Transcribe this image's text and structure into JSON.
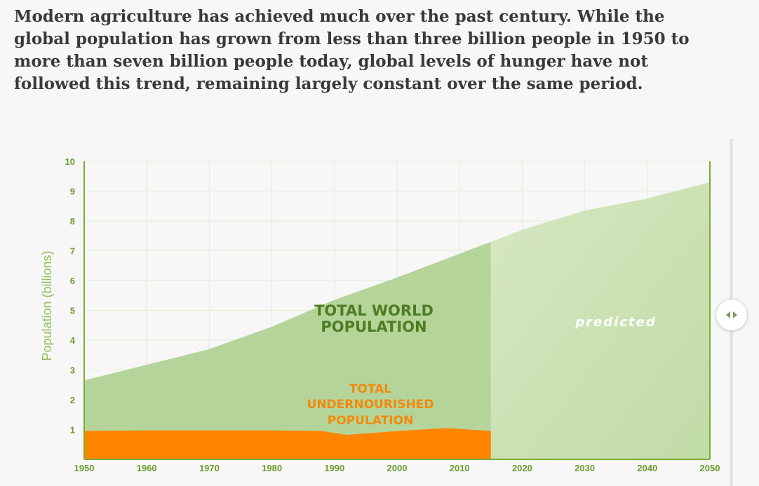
{
  "intro": {
    "text": "Modern agriculture has achieved much over the past century. While the global population has grown from less than three billion people in 1950 to more than seven billion people today, global levels of hunger have not followed this trend, remaining largely constant over the same period."
  },
  "colors": {
    "world_actual": "#b5d49a",
    "world_predicted": "#cde1b6",
    "undernourished": "#ff8500",
    "grid": "#e2eed5",
    "axis": "#78ad3a",
    "tick_text": "#6b9c2d"
  },
  "slider": {
    "icon": "left-right-arrows-icon"
  },
  "chart_data": {
    "type": "area",
    "ylabel": "Population (billions)",
    "xlabel": "",
    "xlim": [
      1950,
      2050
    ],
    "ylim": [
      0,
      10
    ],
    "x_ticks": [
      "1950",
      "1960",
      "1970",
      "1980",
      "1990",
      "2000",
      "2010",
      "2020",
      "2030",
      "2040",
      "2050"
    ],
    "y_ticks": [
      "1",
      "2",
      "3",
      "4",
      "5",
      "6",
      "7",
      "8",
      "9",
      "10"
    ],
    "grid": true,
    "predicted_from": 2015,
    "series": [
      {
        "name": "TOTAL WORLD POPULATION",
        "points": [
          [
            1950,
            2.65
          ],
          [
            1970,
            3.7
          ],
          [
            1980,
            4.45
          ],
          [
            1990,
            5.35
          ],
          [
            2000,
            6.1
          ],
          [
            2010,
            6.9
          ],
          [
            2015,
            7.3
          ],
          [
            2020,
            7.7
          ],
          [
            2030,
            8.35
          ],
          [
            2040,
            8.75
          ],
          [
            2050,
            9.3
          ]
        ]
      },
      {
        "name": "TOTAL UNDERNOURISHED POPULATION",
        "points": [
          [
            1950,
            0.95
          ],
          [
            1960,
            0.97
          ],
          [
            1970,
            0.97
          ],
          [
            1980,
            0.97
          ],
          [
            1988,
            0.95
          ],
          [
            1992,
            0.82
          ],
          [
            2000,
            0.95
          ],
          [
            2008,
            1.05
          ],
          [
            2015,
            0.95
          ]
        ]
      }
    ],
    "annotations": {
      "world_line1": "TOTAL WORLD",
      "world_line2": "POPULATION",
      "under_line1": "TOTAL",
      "under_line2": "UNDERNOURISHED",
      "under_line3": "POPULATION",
      "predicted": "predicted"
    }
  }
}
